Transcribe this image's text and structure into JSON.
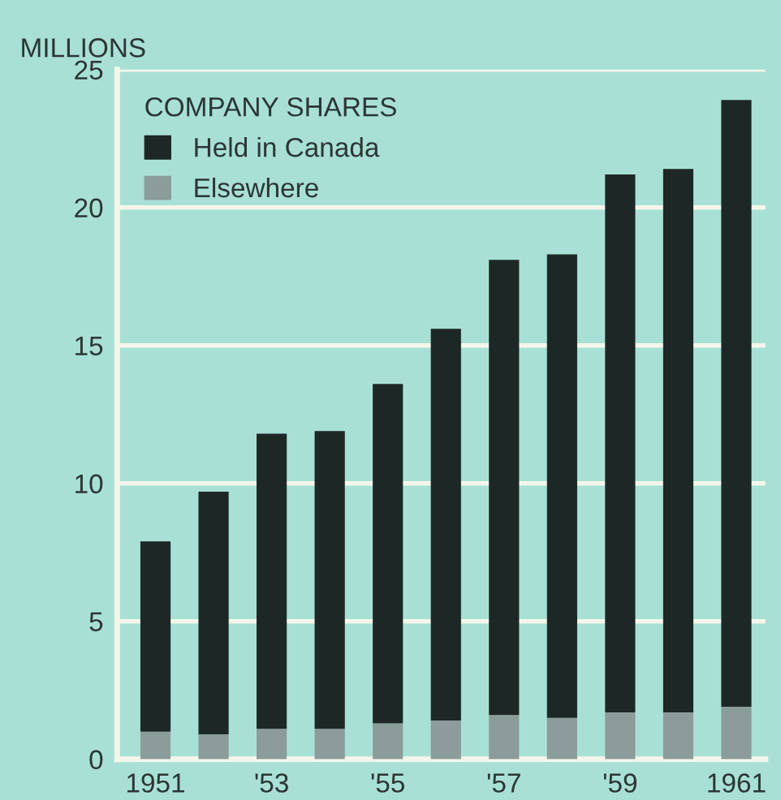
{
  "chart_data": {
    "type": "bar",
    "stacked": true,
    "ylabel": "MILLIONS",
    "legend_title": "COMPANY SHARES",
    "categories": [
      "1951",
      null,
      "'53",
      null,
      "'55",
      null,
      "'57",
      null,
      "'59",
      null,
      "1961"
    ],
    "series": [
      {
        "name": "Elsewhere",
        "color": "#8c9c9a",
        "values": [
          1.0,
          0.9,
          1.1,
          1.1,
          1.3,
          1.4,
          1.6,
          1.5,
          1.7,
          1.7,
          1.9
        ]
      },
      {
        "name": "Held in Canada",
        "color": "#1d2826",
        "values": [
          6.9,
          8.8,
          10.7,
          10.8,
          12.3,
          14.2,
          16.5,
          16.8,
          19.5,
          19.7,
          22.0
        ]
      }
    ],
    "ylim": [
      0,
      25
    ],
    "yticks": [
      0,
      5,
      10,
      15,
      20,
      25
    ],
    "grid": "y",
    "legend": "top left"
  }
}
